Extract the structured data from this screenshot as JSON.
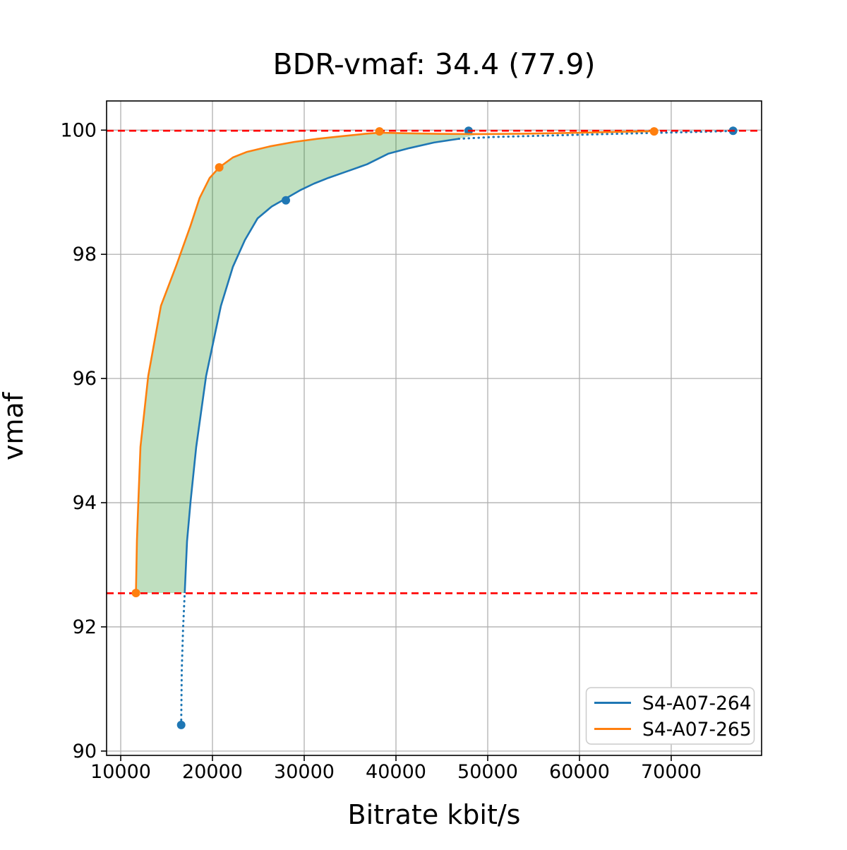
{
  "chart_data": {
    "type": "line",
    "title": "BDR-vmaf: 34.4 (77.9)",
    "xlabel": "Bitrate kbit/s",
    "ylabel": "vmaf",
    "xlim": [
      8460,
      79850
    ],
    "ylim": [
      89.93,
      100.47
    ],
    "grid": true,
    "legend_position": "lower right",
    "xticks": {
      "values": [
        10000,
        20000,
        30000,
        40000,
        50000,
        60000,
        70000
      ],
      "labels": [
        "10000",
        "20000",
        "30000",
        "40000",
        "50000",
        "60000",
        "70000"
      ]
    },
    "yticks": {
      "values": [
        90,
        92,
        94,
        96,
        98,
        100
      ],
      "labels": [
        "90",
        "92",
        "94",
        "96",
        "98",
        "100"
      ]
    },
    "hlines": {
      "color": "#ff0000",
      "style": "dashed",
      "values": [
        99.99,
        92.542
      ],
      "meaning": "BD integration bounds"
    },
    "fill_between": {
      "color": "#008000",
      "opacity": 0.25,
      "x_max": 49200,
      "upper_series": 1,
      "lower_series": 0
    },
    "series": [
      {
        "name": "S4-A07-264",
        "color": "#1f77b4",
        "points": [
          [
            16590,
            90.42
          ],
          [
            28000,
            98.87
          ],
          [
            47920,
            99.99
          ],
          [
            76740,
            99.99
          ]
        ],
        "curve_dotted_low": [
          [
            16590,
            90.42
          ],
          [
            16650,
            91.3
          ],
          [
            16800,
            91.98
          ],
          [
            16975,
            92.545
          ]
        ],
        "curve_solid": [
          [
            16975,
            92.545
          ],
          [
            17230,
            93.38
          ],
          [
            17615,
            94.02
          ],
          [
            18230,
            94.9
          ],
          [
            19310,
            96.04
          ],
          [
            20920,
            97.17
          ],
          [
            22230,
            97.8
          ],
          [
            23540,
            98.23
          ],
          [
            24920,
            98.58
          ],
          [
            26460,
            98.77
          ],
          [
            28000,
            98.9
          ],
          [
            29540,
            99.03
          ],
          [
            31080,
            99.14
          ],
          [
            32610,
            99.23
          ],
          [
            34540,
            99.33
          ],
          [
            36850,
            99.45
          ],
          [
            39150,
            99.62
          ],
          [
            41460,
            99.71
          ],
          [
            44150,
            99.8
          ],
          [
            46850,
            99.86
          ]
        ],
        "curve_dotted_high": [
          [
            46850,
            99.86
          ],
          [
            50690,
            99.89
          ],
          [
            54540,
            99.905
          ],
          [
            58380,
            99.92
          ],
          [
            62230,
            99.934
          ],
          [
            66080,
            99.948
          ],
          [
            69920,
            99.962
          ],
          [
            73770,
            99.975
          ],
          [
            76740,
            99.987
          ]
        ]
      },
      {
        "name": "S4-A07-265",
        "color": "#ff7f0e",
        "points": [
          [
            11660,
            92.545
          ],
          [
            20740,
            99.4
          ],
          [
            38200,
            99.98
          ],
          [
            68130,
            99.98
          ]
        ],
        "curve_dotted_low": [],
        "curve_solid": [
          [
            11660,
            92.545
          ],
          [
            11770,
            93.39
          ],
          [
            11920,
            94.02
          ],
          [
            12150,
            94.9
          ],
          [
            13000,
            96.04
          ],
          [
            14380,
            97.17
          ],
          [
            16080,
            97.83
          ],
          [
            17610,
            98.46
          ],
          [
            18610,
            98.91
          ],
          [
            19690,
            99.23
          ],
          [
            20740,
            99.4
          ],
          [
            22230,
            99.56
          ],
          [
            23770,
            99.65
          ],
          [
            26310,
            99.74
          ],
          [
            28920,
            99.81
          ],
          [
            31460,
            99.86
          ],
          [
            34000,
            99.9
          ],
          [
            36610,
            99.94
          ],
          [
            38310,
            99.96
          ],
          [
            40690,
            99.95
          ],
          [
            44540,
            99.94
          ],
          [
            49150,
            99.937
          ],
          [
            53770,
            99.943
          ],
          [
            58380,
            99.954
          ],
          [
            63000,
            99.969
          ],
          [
            68080,
            99.983
          ]
        ],
        "curve_dotted_high": []
      }
    ],
    "legend": [
      "S4-A07-264",
      "S4-A07-265"
    ],
    "colors": {
      "grid": "#b0b0b0",
      "spine": "#000000",
      "background": "#ffffff",
      "bound_line": "#ff0000",
      "fill": "#008000"
    }
  }
}
